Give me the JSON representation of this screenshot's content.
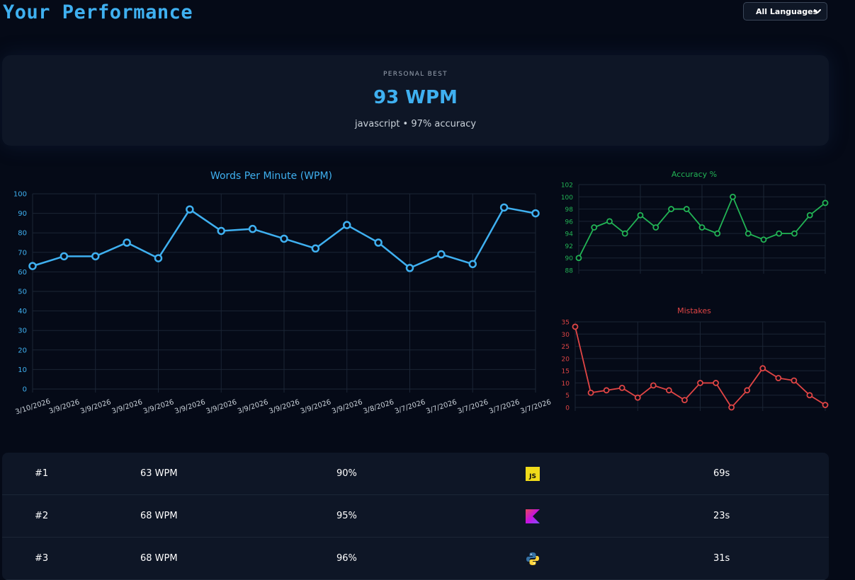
{
  "header": {
    "title": "Your Performance",
    "language_select": {
      "selected": "All Languages"
    }
  },
  "personal_best": {
    "label": "PERSONAL BEST",
    "value": "93 WPM",
    "detail": "javascript • 97% accuracy"
  },
  "colors": {
    "wpm": "#3fb0f0",
    "accuracy": "#22b455",
    "mistakes": "#e04545"
  },
  "chart_data": [
    {
      "type": "line",
      "title": "Words Per Minute (WPM)",
      "x": [
        "3/10/2026",
        "3/9/2026",
        "3/9/2026",
        "3/9/2026",
        "3/9/2026",
        "3/9/2026",
        "3/9/2026",
        "3/9/2026",
        "3/9/2026",
        "3/9/2026",
        "3/9/2026",
        "3/8/2026",
        "3/7/2026",
        "3/7/2026",
        "3/7/2026",
        "3/7/2026",
        "3/7/2026"
      ],
      "values": [
        63,
        68,
        68,
        75,
        67,
        92,
        81,
        82,
        77,
        72,
        84,
        75,
        62,
        69,
        64,
        93,
        90
      ],
      "ylim": [
        0,
        100
      ],
      "yticks": [
        0,
        10,
        20,
        30,
        40,
        50,
        60,
        70,
        80,
        90,
        100
      ],
      "grid": true
    },
    {
      "type": "line",
      "title": "Accuracy %",
      "values": [
        90,
        95,
        96,
        94,
        97,
        95,
        98,
        98,
        95,
        94,
        100,
        94,
        93,
        94,
        94,
        97,
        99
      ],
      "ylim": [
        88,
        102
      ],
      "yticks": [
        88,
        90,
        92,
        94,
        96,
        98,
        100,
        102
      ],
      "grid": true
    },
    {
      "type": "line",
      "title": "Mistakes",
      "values": [
        33,
        6,
        7,
        8,
        4,
        9,
        7,
        3,
        10,
        10,
        0,
        7,
        16,
        12,
        11,
        5,
        1
      ],
      "ylim": [
        0,
        35
      ],
      "yticks": [
        0,
        5,
        10,
        15,
        20,
        25,
        30,
        35
      ],
      "grid": true
    }
  ],
  "history": [
    {
      "rank": "#1",
      "wpm": "63 WPM",
      "accuracy": "90%",
      "language": "javascript-icon",
      "time": "69s"
    },
    {
      "rank": "#2",
      "wpm": "68 WPM",
      "accuracy": "95%",
      "language": "kotlin-icon",
      "time": "23s"
    },
    {
      "rank": "#3",
      "wpm": "68 WPM",
      "accuracy": "96%",
      "language": "python-icon",
      "time": "31s"
    }
  ]
}
